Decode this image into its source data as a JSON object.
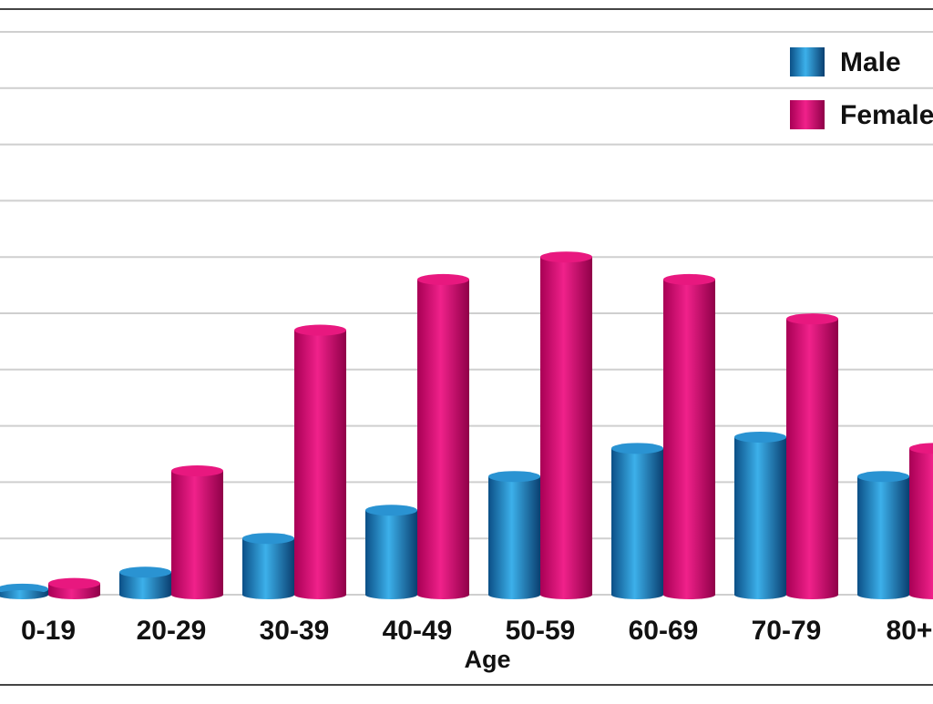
{
  "chart_data": {
    "type": "bar",
    "title": "",
    "xlabel": "Age",
    "ylabel": "",
    "categories": [
      "0-19",
      "20-29",
      "30-39",
      "40-49",
      "50-59",
      "60-69",
      "70-79",
      "80+"
    ],
    "series": [
      {
        "name": "Male",
        "values": [
          0.1,
          0.4,
          1.0,
          1.5,
          2.1,
          2.6,
          2.8,
          2.1
        ]
      },
      {
        "name": "Female",
        "values": [
          0.2,
          2.2,
          4.7,
          5.6,
          6.0,
          5.6,
          4.9,
          2.6
        ]
      }
    ],
    "ylim": [
      0,
      10
    ],
    "grid": true,
    "legend": "top-right",
    "colors": {
      "male": "#1a7fc0",
      "female": "#d4006e",
      "grid": "#cfcfcf"
    }
  }
}
